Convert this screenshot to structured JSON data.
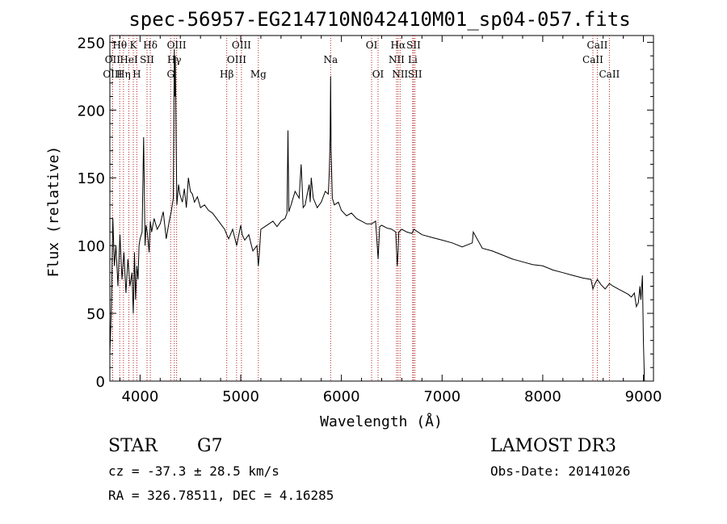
{
  "chart_data": {
    "type": "line",
    "title": "spec-56957-EG214710N042410M01_sp04-057.fits",
    "xlabel": "Wavelength (Å)",
    "ylabel": "Flux (relative)",
    "xlim": [
      3700,
      9100
    ],
    "ylim": [
      0,
      255
    ],
    "x_ticks": [
      4000,
      5000,
      6000,
      7000,
      8000,
      9000
    ],
    "y_ticks": [
      0,
      50,
      100,
      150,
      200,
      250
    ],
    "colors": {
      "spectrum": "#000000",
      "line_marker": "#b22222"
    },
    "spectrum": {
      "name": "flux",
      "x": [
        3700,
        3715,
        3730,
        3745,
        3760,
        3780,
        3800,
        3820,
        3840,
        3860,
        3880,
        3900,
        3920,
        3933,
        3945,
        3955,
        3968,
        3980,
        3990,
        4000,
        4020,
        4035,
        4050,
        4060,
        4075,
        4090,
        4102,
        4115,
        4140,
        4170,
        4200,
        4230,
        4260,
        4290,
        4310,
        4330,
        4340,
        4345,
        4350,
        4365,
        4383,
        4395,
        4420,
        4440,
        4460,
        4480,
        4500,
        4520,
        4540,
        4570,
        4600,
        4640,
        4680,
        4720,
        4760,
        4800,
        4840,
        4861,
        4880,
        4920,
        4960,
        5000,
        5015,
        5040,
        5080,
        5120,
        5160,
        5175,
        5183,
        5200,
        5240,
        5280,
        5320,
        5360,
        5400,
        5440,
        5460,
        5469,
        5478,
        5500,
        5540,
        5580,
        5600,
        5620,
        5640,
        5660,
        5680,
        5690,
        5700,
        5720,
        5760,
        5800,
        5840,
        5870,
        5880,
        5888,
        5893,
        5898,
        5910,
        5930,
        5970,
        6000,
        6050,
        6100,
        6150,
        6200,
        6250,
        6300,
        6340,
        6365,
        6380,
        6400,
        6450,
        6500,
        6540,
        6555,
        6563,
        6570,
        6600,
        6650,
        6700,
        6720,
        6800,
        6900,
        7000,
        7100,
        7200,
        7300,
        7310,
        7400,
        7500,
        7600,
        7700,
        7800,
        7900,
        8000,
        8100,
        8200,
        8300,
        8400,
        8480,
        8498,
        8520,
        8542,
        8580,
        8620,
        8662,
        8700,
        8750,
        8800,
        8850,
        8880,
        8910,
        8930,
        8950,
        8965,
        8975,
        8990,
        9000,
        9010
      ],
      "values": [
        20,
        55,
        120,
        85,
        100,
        70,
        108,
        75,
        95,
        65,
        90,
        70,
        80,
        50,
        95,
        60,
        85,
        75,
        100,
        105,
        110,
        180,
        100,
        115,
        108,
        95,
        118,
        110,
        120,
        112,
        116,
        125,
        105,
        118,
        125,
        135,
        245,
        210,
        240,
        130,
        145,
        138,
        132,
        142,
        128,
        150,
        140,
        138,
        132,
        136,
        128,
        130,
        126,
        124,
        120,
        116,
        112,
        108,
        105,
        112,
        100,
        115,
        108,
        104,
        108,
        96,
        100,
        85,
        92,
        112,
        114,
        116,
        118,
        114,
        118,
        120,
        124,
        185,
        125,
        130,
        140,
        135,
        160,
        128,
        130,
        138,
        145,
        132,
        150,
        135,
        128,
        132,
        140,
        138,
        155,
        180,
        225,
        170,
        135,
        130,
        132,
        126,
        122,
        124,
        120,
        118,
        116,
        116,
        118,
        90,
        114,
        115,
        113,
        112,
        110,
        85,
        96,
        110,
        112,
        110,
        109,
        112,
        108,
        106,
        104,
        102,
        99,
        102,
        110,
        98,
        96,
        93,
        90,
        88,
        86,
        85,
        82,
        80,
        78,
        76,
        75,
        68,
        72,
        75,
        71,
        68,
        72,
        70,
        68,
        66,
        64,
        62,
        65,
        55,
        58,
        70,
        60,
        78,
        30,
        0
      ]
    },
    "line_markers": [
      {
        "label": "Hθ",
        "x": 3798,
        "row": 1
      },
      {
        "label": "OII",
        "x": 3727,
        "row": 2
      },
      {
        "label": "OIII",
        "x": 3727,
        "row": 3
      },
      {
        "label": "K",
        "x": 3933,
        "row": 1
      },
      {
        "label": "HeI",
        "x": 3889,
        "row": 2
      },
      {
        "label": "Hη",
        "x": 3835,
        "row": 3
      },
      {
        "label": "H",
        "x": 3968,
        "row": 3
      },
      {
        "label": "Hδ",
        "x": 4102,
        "row": 1
      },
      {
        "label": "SII",
        "x": 4069,
        "row": 2
      },
      {
        "label": "OIII",
        "x": 4363,
        "row": 1
      },
      {
        "label": "Hγ",
        "x": 4340,
        "row": 2
      },
      {
        "label": "G",
        "x": 4304,
        "row": 3
      },
      {
        "label": "OIII",
        "x": 5007,
        "row": 1
      },
      {
        "label": "OIII",
        "x": 4959,
        "row": 2
      },
      {
        "label": "Hβ",
        "x": 4861,
        "row": 3
      },
      {
        "label": "Mg",
        "x": 5175,
        "row": 3
      },
      {
        "label": "Na",
        "x": 5893,
        "row": 2
      },
      {
        "label": "OI",
        "x": 6300,
        "row": 1
      },
      {
        "label": "OI",
        "x": 6364,
        "row": 3
      },
      {
        "label": "Hα",
        "x": 6563,
        "row": 1
      },
      {
        "label": "SII",
        "x": 6717,
        "row": 1
      },
      {
        "label": "NII",
        "x": 6548,
        "row": 2
      },
      {
        "label": "Li",
        "x": 6708,
        "row": 2
      },
      {
        "label": "NII",
        "x": 6583,
        "row": 3
      },
      {
        "label": "SII",
        "x": 6731,
        "row": 3
      },
      {
        "label": "CaII",
        "x": 8542,
        "row": 1
      },
      {
        "label": "CaII",
        "x": 8498,
        "row": 2
      },
      {
        "label": "CaII",
        "x": 8662,
        "row": 3
      }
    ]
  },
  "info": {
    "object_class": "STAR",
    "subclass": "G7",
    "survey": "LAMOST DR3",
    "cz": "cz = -37.3 ± 28.5 km/s",
    "obs_date": "Obs-Date: 20141026",
    "coords": "RA = 326.78511, DEC =   4.16285"
  }
}
